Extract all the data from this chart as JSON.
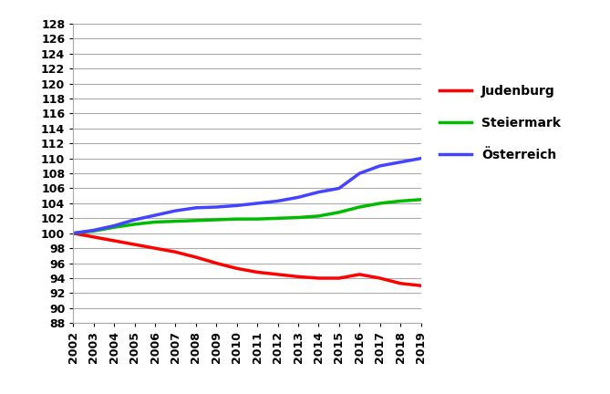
{
  "years": [
    2002,
    2003,
    2004,
    2005,
    2006,
    2007,
    2008,
    2009,
    2010,
    2011,
    2012,
    2013,
    2014,
    2015,
    2016,
    2017,
    2018,
    2019
  ],
  "judenburg": [
    100.0,
    99.5,
    99.0,
    98.5,
    98.0,
    97.5,
    96.8,
    96.0,
    95.3,
    94.8,
    94.5,
    94.2,
    94.0,
    94.0,
    94.5,
    94.0,
    93.3,
    93.0
  ],
  "steiermark": [
    100.0,
    100.3,
    100.8,
    101.2,
    101.5,
    101.6,
    101.7,
    101.8,
    101.9,
    101.9,
    102.0,
    102.1,
    102.3,
    102.8,
    103.5,
    104.0,
    104.3,
    104.5
  ],
  "oesterreich": [
    100.0,
    100.4,
    101.0,
    101.8,
    102.4,
    103.0,
    103.4,
    103.5,
    103.7,
    104.0,
    104.3,
    104.8,
    105.5,
    106.0,
    108.0,
    109.0,
    109.5,
    110.0
  ],
  "judenburg_color": "#ff0000",
  "steiermark_color": "#00bb00",
  "oesterreich_color": "#4444ff",
  "line_width": 2.5,
  "ylim": [
    88,
    128
  ],
  "ytick_step": 2,
  "legend_labels": [
    "Judenburg",
    "Steiermark",
    "Österreich"
  ],
  "bg_color": "#ffffff",
  "grid_color": "#aaaaaa",
  "tick_fontsize": 9,
  "legend_fontsize": 10
}
